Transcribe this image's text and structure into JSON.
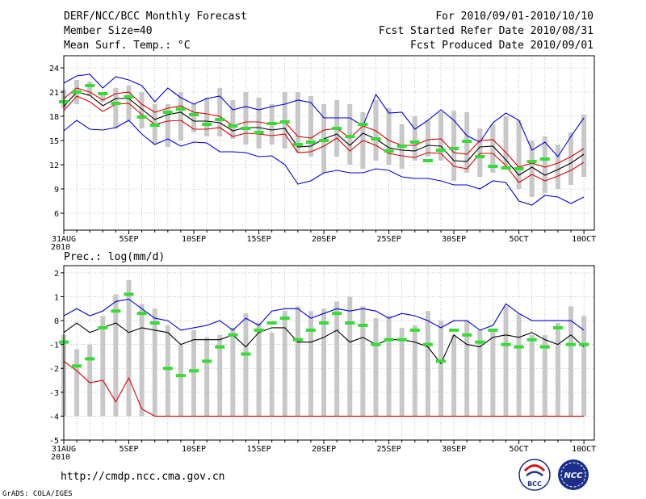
{
  "header": {
    "title": "DERF/NCC/BCC Monthly Forecast",
    "member_size": "Member Size=40",
    "variable": "Mean Surf. Temp.: °C",
    "period": "For 2010/09/01-2010/10/10",
    "started": "Fcst Started Refer Date 2010/08/31",
    "produced": "Fcst Produced Date 2010/09/01"
  },
  "footer": {
    "url": "http://cmdp.ncc.cma.gov.cn",
    "credit": "GrADS: COLA/IGES",
    "logo_bcc": "BCC",
    "logo_ncc": "NCC"
  },
  "colors": {
    "blue": "#0000dd",
    "red": "#dd0000",
    "black": "#000000",
    "bar": "#c8c8c8",
    "green": "#33dd33",
    "grid": "#999999"
  },
  "chart_data": [
    {
      "type": "line",
      "title": "Mean Surf. Temp.: °C",
      "x_tick_labels": [
        "31AUG",
        "5SEP",
        "10SEP",
        "15SEP",
        "20SEP",
        "25SEP",
        "30SEP",
        "5OCT",
        "10OCT"
      ],
      "x_year_label": "2010",
      "x_tick_days": [
        0,
        5,
        10,
        15,
        20,
        25,
        30,
        35,
        40
      ],
      "x_range": [
        0,
        40.8
      ],
      "ylim": [
        3.9,
        25.5
      ],
      "yticks": [
        6,
        9,
        12,
        15,
        18,
        21,
        24
      ],
      "bars": {
        "name": "ensemble range",
        "low": [
          19.0,
          19.5,
          20.5,
          19.8,
          16.5,
          17.5,
          16.5,
          14.5,
          14.2,
          15.0,
          16.0,
          15.5,
          15.5,
          15.2,
          14.5,
          14.0,
          14.5,
          14.0,
          13.5,
          13.0,
          11.0,
          13.0,
          12.0,
          11.5,
          12.5,
          12.0,
          11.5,
          12.5,
          13.0,
          12.5,
          10.0,
          11.0,
          10.5,
          11.0,
          11.5,
          9.0,
          8.0,
          8.5,
          9.0,
          9.5,
          10.5
        ],
        "high": [
          21.3,
          22.5,
          22.3,
          21.0,
          21.5,
          21.8,
          21.0,
          19.5,
          19.5,
          21.0,
          19.5,
          20.3,
          21.5,
          20.0,
          21.0,
          20.3,
          19.5,
          21.0,
          21.0,
          20.5,
          19.5,
          20.0,
          19.5,
          18.5,
          20.0,
          19.0,
          17.0,
          18.0,
          17.5,
          18.5,
          18.7,
          18.5,
          16.5,
          17.0,
          18.0,
          17.5,
          15.0,
          15.5,
          14.5,
          16.0,
          18.2
        ]
      },
      "observed_markers": [
        19.8,
        21.0,
        21.8,
        20.8,
        19.6,
        20.4,
        17.9,
        16.9,
        18.5,
        18.9,
        18.2,
        17.0,
        17.6,
        16.8,
        16.5,
        16.0,
        17.1,
        17.3,
        14.5,
        14.8,
        15.0,
        16.5,
        15.5,
        17.0,
        15.2,
        13.7,
        14.3,
        14.8,
        12.5,
        13.8,
        14.0,
        14.9,
        13.0,
        11.8,
        11.6,
        11.5,
        12.4,
        12.7
      ],
      "series": [
        {
          "name": "max",
          "color": "blue",
          "values": [
            16.2,
            17.5,
            16.4,
            16.3,
            16.6,
            17.5,
            15.8,
            14.5,
            15.2,
            14.3,
            14.8,
            14.7,
            13.6,
            13.6,
            13.5,
            13.0,
            13.1,
            12.0,
            9.6,
            10.0,
            11.0,
            11.3,
            11.0,
            11.0,
            11.5,
            11.3,
            10.5,
            10.3,
            10.3,
            10.0,
            9.5,
            9.5,
            9.0,
            10.0,
            9.8,
            7.5,
            7.0,
            8.2,
            8.0,
            7.2,
            8.0
          ]
        },
        {
          "name": "min",
          "color": "blue",
          "values": [
            22.1,
            23.0,
            23.2,
            21.5,
            22.9,
            22.5,
            21.8,
            19.8,
            21.5,
            20.3,
            19.5,
            20.2,
            20.5,
            18.8,
            19.2,
            18.8,
            19.2,
            19.5,
            20.0,
            19.7,
            17.8,
            17.8,
            17.8,
            16.8,
            20.7,
            18.4,
            18.5,
            16.4,
            17.5,
            18.8,
            17.5,
            15.6,
            14.8,
            17.2,
            18.4,
            17.5,
            13.8,
            14.8,
            13.0,
            15.5,
            17.8
          ]
        },
        {
          "name": "p90",
          "color": "red",
          "values": [
            20.2,
            21.5,
            21.0,
            20.0,
            20.8,
            21.0,
            19.5,
            18.5,
            19.0,
            19.3,
            18.5,
            18.3,
            18.0,
            16.8,
            17.3,
            17.3,
            17.0,
            17.3,
            15.5,
            15.3,
            16.3,
            16.5,
            15.3,
            16.8,
            16.2,
            15.0,
            14.4,
            14.4,
            15.1,
            15.2,
            13.5,
            13.3,
            15.0,
            15.1,
            13.5,
            11.7,
            12.2,
            11.7,
            12.2,
            13.0,
            14.0
          ]
        },
        {
          "name": "mean",
          "color": "black",
          "values": [
            19.2,
            21.0,
            20.6,
            19.3,
            20.2,
            20.2,
            18.9,
            17.6,
            18.2,
            18.5,
            17.4,
            17.4,
            17.2,
            16.2,
            16.6,
            16.6,
            16.3,
            16.5,
            14.2,
            14.3,
            15.2,
            15.8,
            14.4,
            15.9,
            15.2,
            14.1,
            13.8,
            13.7,
            14.4,
            14.3,
            12.5,
            12.4,
            14.2,
            14.3,
            12.6,
            10.7,
            11.7,
            10.7,
            11.4,
            12.2,
            13.3
          ]
        },
        {
          "name": "p10",
          "color": "red",
          "values": [
            18.7,
            20.5,
            19.8,
            18.6,
            19.5,
            19.6,
            18.2,
            17.0,
            17.4,
            17.5,
            16.4,
            16.4,
            16.6,
            15.5,
            15.9,
            15.8,
            15.6,
            15.8,
            13.5,
            13.6,
            14.3,
            15.3,
            13.7,
            15.0,
            14.4,
            13.4,
            13.1,
            12.9,
            13.5,
            13.4,
            11.8,
            11.5,
            13.4,
            13.4,
            11.9,
            9.8,
            10.8,
            10.0,
            10.6,
            11.3,
            12.3
          ]
        }
      ]
    },
    {
      "type": "line",
      "title": "Prec.: log(mm/d)",
      "x_tick_labels": [
        "31AUG",
        "5SEP",
        "10SEP",
        "15SEP",
        "20SEP",
        "25SEP",
        "30SEP",
        "5OCT",
        "10OCT"
      ],
      "x_year_label": "2010",
      "x_tick_days": [
        0,
        5,
        10,
        15,
        20,
        25,
        30,
        35,
        40
      ],
      "x_range": [
        0,
        40.8
      ],
      "ylim": [
        -5,
        2.3
      ],
      "yticks": [
        -5,
        -4,
        -3,
        -2,
        -1,
        0,
        1,
        2
      ],
      "bars": {
        "name": "ensemble range",
        "low": [
          -4,
          -4,
          -4,
          -4,
          -4,
          -4,
          -4,
          -4,
          -4,
          -4,
          -4,
          -4,
          -4,
          -4,
          -4,
          -4,
          -4,
          -4,
          -4,
          -4,
          -4,
          -4,
          -4,
          -4,
          -4,
          -4,
          -4,
          -4,
          -4,
          -4,
          -4,
          -4,
          -4,
          -4,
          -4,
          -4,
          -4,
          -4,
          -4,
          -4,
          -4
        ],
        "high": [
          -0.6,
          -1.2,
          -1.0,
          0.2,
          1.1,
          1.7,
          0.7,
          0.5,
          -0.2,
          -1.0,
          -0.4,
          -0.7,
          -0.6,
          -0.3,
          0.3,
          -0.1,
          -0.5,
          0.4,
          0.6,
          0.4,
          0.5,
          0.8,
          1.0,
          0.6,
          0.1,
          0.2,
          -0.3,
          -0.2,
          0.4,
          0.0,
          -0.6,
          0.0,
          -0.4,
          -0.4,
          0.6,
          0.3,
          -0.6,
          -0.6,
          -0.1,
          0.6,
          0.2
        ]
      },
      "observed_markers": [
        -0.9,
        -1.9,
        -1.6,
        -0.3,
        0.4,
        1.1,
        0.3,
        -0.1,
        -2.0,
        -2.3,
        -2.1,
        -1.7,
        -1.1,
        -0.6,
        -1.4,
        -0.4,
        -0.1,
        0.1,
        -0.8,
        -0.4,
        -0.1,
        0.3,
        -0.1,
        -0.2,
        -1.0,
        -0.8,
        -0.8,
        -0.4,
        -1.0,
        -1.7,
        -0.4,
        -0.6,
        -0.9,
        -0.4,
        -1.0,
        -1.1,
        -0.8,
        -1.1,
        -0.3,
        -1.0,
        -1.0
      ],
      "series": [
        {
          "name": "max",
          "color": "blue",
          "values": [
            0.2,
            0.5,
            0.2,
            0.4,
            0.8,
            0.9,
            0.5,
            0.1,
            0.0,
            -0.4,
            -0.3,
            -0.2,
            0.0,
            -0.4,
            0.1,
            -0.2,
            0.4,
            0.5,
            0.5,
            0.1,
            0.3,
            0.5,
            0.4,
            0.5,
            0.4,
            0.1,
            0.3,
            0.2,
            0.0,
            -0.3,
            0.0,
            0.0,
            -0.4,
            -0.2,
            0.7,
            0.3,
            0.0,
            0.0,
            0.0,
            0.0,
            -0.4
          ]
        },
        {
          "name": "mean",
          "color": "black",
          "values": [
            -0.5,
            -0.1,
            -0.5,
            -0.3,
            -0.1,
            -0.5,
            -0.3,
            -0.4,
            -0.5,
            -1.0,
            -0.8,
            -0.8,
            -0.8,
            -0.6,
            -1.1,
            -0.5,
            -0.3,
            -0.3,
            -0.9,
            -0.9,
            -0.7,
            -0.4,
            -0.9,
            -0.7,
            -1.0,
            -0.8,
            -0.8,
            -0.9,
            -1.1,
            -1.8,
            -0.6,
            -1.0,
            -1.1,
            -0.7,
            -0.6,
            -0.7,
            -0.5,
            -0.8,
            -1.0,
            -0.6,
            -1.1
          ]
        },
        {
          "name": "min",
          "color": "red",
          "values": [
            -1.7,
            -2.1,
            -2.6,
            -2.5,
            -3.4,
            -2.4,
            -3.7,
            -4.0,
            -4.0,
            -4.0,
            -4.0,
            -4.0,
            -4.0,
            -4.0,
            -4.0,
            -4.0,
            -4.0,
            -4.0,
            -4.0,
            -4.0,
            -4.0,
            -4.0,
            -4.0,
            -4.0,
            -4.0,
            -4.0,
            -4.0,
            -4.0,
            -4.0,
            -4.0,
            -4.0,
            -4.0,
            -4.0,
            -4.0,
            -4.0,
            -4.0,
            -4.0,
            -4.0,
            -4.0,
            -4.0,
            -4.0
          ]
        }
      ]
    }
  ]
}
